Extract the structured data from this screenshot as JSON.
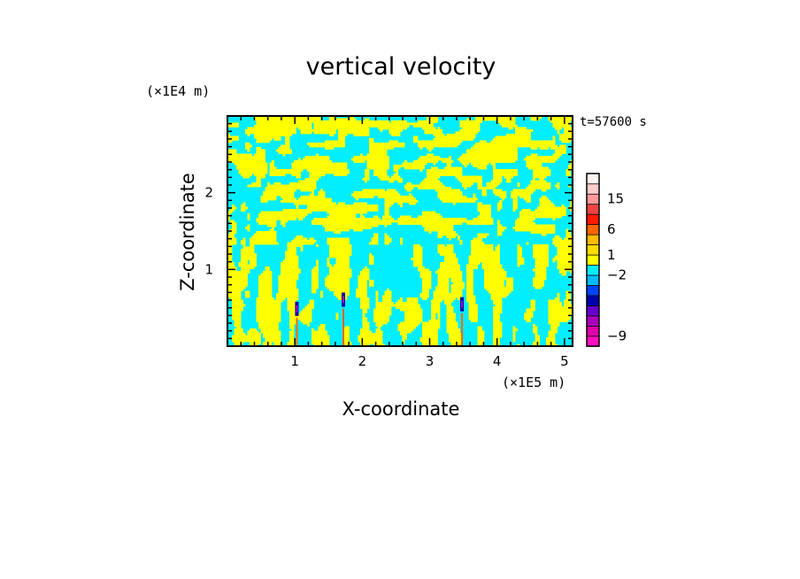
{
  "chart_data": {
    "type": "heatmap",
    "title": "vertical velocity",
    "xlabel": "X-coordinate",
    "ylabel": "Z-coordinate",
    "x_unit": "(×1E5 m)",
    "y_unit": "(×1E4 m)",
    "time_label": "t=57600 s",
    "xlim": [
      0,
      5.12
    ],
    "ylim": [
      0,
      3.0
    ],
    "x_ticks": [
      1,
      2,
      3,
      4,
      5
    ],
    "y_ticks": [
      1,
      2
    ],
    "dominant_colors": {
      "positive": "#ffff00",
      "negative": "#00eeff"
    },
    "colorbar": {
      "bands": [
        {
          "color": "#ff10c0"
        },
        {
          "color": "#dd00aa"
        },
        {
          "color": "#aa00bb"
        },
        {
          "color": "#6600cc"
        },
        {
          "color": "#0000aa"
        },
        {
          "color": "#0044ff"
        },
        {
          "color": "#00bbff"
        },
        {
          "color": "#00eeff"
        },
        {
          "color": "#ffff00"
        },
        {
          "color": "#ffdd00"
        },
        {
          "color": "#ffbb00"
        },
        {
          "color": "#ff6600"
        },
        {
          "color": "#ff1a00"
        },
        {
          "color": "#ee4444"
        },
        {
          "color": "#ff9999"
        },
        {
          "color": "#ffcccc"
        },
        {
          "color": "#fff3ee"
        }
      ],
      "labels": [
        {
          "text": "15",
          "band_edge": 14.5
        },
        {
          "text": "6",
          "band_edge": 11.5
        },
        {
          "text": "1",
          "band_edge": 9.0
        },
        {
          "text": "−2",
          "band_edge": 7.0
        },
        {
          "text": "−9",
          "band_edge": 1.0
        }
      ]
    }
  }
}
